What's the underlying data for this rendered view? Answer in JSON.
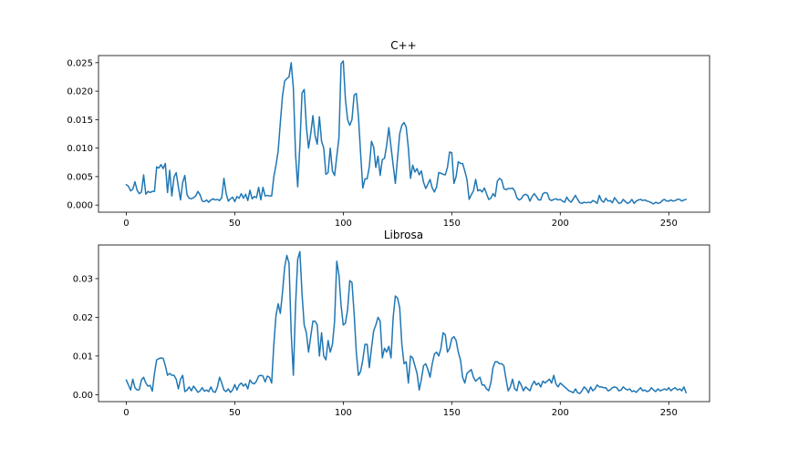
{
  "colors": {
    "series": "#1f77b4",
    "axes": "#000000",
    "background": "#ffffff"
  },
  "chart_data": [
    {
      "type": "line",
      "title": "C++",
      "xlabel": "",
      "ylabel": "",
      "xlim": [
        -12.8,
        268.8
      ],
      "ylim": [
        -0.00125,
        0.02625
      ],
      "xticks": [
        0,
        50,
        100,
        150,
        200,
        250
      ],
      "xtick_labels": [
        "0",
        "50",
        "100",
        "150",
        "200",
        "250"
      ],
      "yticks": [
        0.0,
        0.005,
        0.01,
        0.015,
        0.02,
        0.025
      ],
      "ytick_labels": [
        "0.000",
        "0.005",
        "0.010",
        "0.015",
        "0.020",
        "0.025"
      ],
      "grid": false,
      "series": [
        {
          "x_start": 0,
          "x_step": 1,
          "values": [
            0.0036,
            0.0033,
            0.0025,
            0.0028,
            0.0041,
            0.0026,
            0.002,
            0.0023,
            0.0053,
            0.0019,
            0.0024,
            0.0022,
            0.0024,
            0.0024,
            0.0067,
            0.0065,
            0.0071,
            0.0064,
            0.0073,
            0.0022,
            0.0061,
            0.0016,
            0.0049,
            0.0057,
            0.0032,
            0.0009,
            0.004,
            0.0052,
            0.0018,
            0.0012,
            0.0011,
            0.0013,
            0.0016,
            0.0024,
            0.0018,
            0.0007,
            0.0006,
            0.0009,
            0.0005,
            0.0009,
            0.0011,
            0.0009,
            0.001,
            0.0008,
            0.0013,
            0.0047,
            0.0021,
            0.0007,
            0.0011,
            0.0014,
            0.0006,
            0.0015,
            0.0012,
            0.002,
            0.0012,
            0.0019,
            0.0008,
            0.0026,
            0.0011,
            0.0015,
            0.0013,
            0.0031,
            0.0009,
            0.0031,
            0.0016,
            0.0017,
            0.0016,
            0.0016,
            0.005,
            0.007,
            0.0095,
            0.0145,
            0.0192,
            0.0218,
            0.0222,
            0.0225,
            0.025,
            0.0205,
            0.009,
            0.0032,
            0.0105,
            0.0197,
            0.0203,
            0.0138,
            0.01,
            0.0125,
            0.0157,
            0.0122,
            0.0107,
            0.0155,
            0.0112,
            0.01,
            0.0054,
            0.0057,
            0.01,
            0.006,
            0.0052,
            0.0085,
            0.0118,
            0.0248,
            0.0253,
            0.0185,
            0.015,
            0.014,
            0.015,
            0.0193,
            0.0196,
            0.0155,
            0.009,
            0.003,
            0.0046,
            0.0046,
            0.0067,
            0.0112,
            0.0102,
            0.0066,
            0.0086,
            0.0052,
            0.008,
            0.0082,
            0.0105,
            0.0136,
            0.0102,
            0.007,
            0.0038,
            0.0082,
            0.0125,
            0.014,
            0.0145,
            0.0137,
            0.01,
            0.0047,
            0.007,
            0.0058,
            0.0064,
            0.0053,
            0.006,
            0.004,
            0.0029,
            0.0037,
            0.0045,
            0.003,
            0.0023,
            0.0032,
            0.0057,
            0.0056,
            0.0054,
            0.0053,
            0.0066,
            0.0093,
            0.0092,
            0.0038,
            0.005,
            0.0076,
            0.0073,
            0.0073,
            0.006,
            0.0045,
            0.001,
            0.0018,
            0.0025,
            0.0045,
            0.0025,
            0.0027,
            0.0023,
            0.003,
            0.002,
            0.001,
            0.0012,
            0.002,
            0.0015,
            0.0042,
            0.0047,
            0.0044,
            0.0029,
            0.0027,
            0.0029,
            0.0029,
            0.003,
            0.0025,
            0.0013,
            0.0009,
            0.0011,
            0.0017,
            0.0019,
            0.0017,
            0.0007,
            0.0015,
            0.002,
            0.0015,
            0.0009,
            0.0009,
            0.002,
            0.0022,
            0.0021,
            0.001,
            0.0008,
            0.001,
            0.0011,
            0.0009,
            0.001,
            0.0007,
            0.0005,
            0.0014,
            0.0008,
            0.0005,
            0.0011,
            0.0017,
            0.001,
            0.0004,
            0.0003,
            0.0005,
            0.0004,
            0.0005,
            0.0004,
            0.0008,
            0.0006,
            0.0003,
            0.0017,
            0.0008,
            0.0005,
            0.0012,
            0.0007,
            0.0008,
            0.0004,
            0.0013,
            0.0008,
            0.0003,
            0.0004,
            0.001,
            0.0006,
            0.0003,
            0.0005,
            0.001,
            0.0003,
            0.0007,
            0.0009,
            0.001,
            0.0008,
            0.0009,
            0.0007,
            0.0006,
            0.0004,
            0.0002,
            0.0005,
            0.0003,
            0.0004,
            0.0008,
            0.001,
            0.0007,
            0.0007,
            0.0009,
            0.0007,
            0.0008,
            0.001,
            0.001,
            0.0007,
            0.0009,
            0.001
          ]
        }
      ]
    },
    {
      "type": "line",
      "title": "Librosa",
      "xlabel": "",
      "ylabel": "",
      "xlim": [
        -12.8,
        268.8
      ],
      "ylim": [
        -0.0018,
        0.0387
      ],
      "xticks": [
        0,
        50,
        100,
        150,
        200,
        250
      ],
      "xtick_labels": [
        "0",
        "50",
        "100",
        "150",
        "200",
        "250"
      ],
      "yticks": [
        0.0,
        0.01,
        0.02,
        0.03
      ],
      "ytick_labels": [
        "0.00",
        "0.01",
        "0.02",
        "0.03"
      ],
      "grid": false,
      "series": [
        {
          "x_start": 0,
          "x_step": 1,
          "values": [
            0.0038,
            0.0025,
            0.0012,
            0.004,
            0.0018,
            0.0012,
            0.0013,
            0.0038,
            0.0045,
            0.003,
            0.0022,
            0.0024,
            0.0009,
            0.0055,
            0.009,
            0.0093,
            0.0095,
            0.0094,
            0.0075,
            0.005,
            0.0055,
            0.005,
            0.005,
            0.004,
            0.0015,
            0.004,
            0.005,
            0.0008,
            0.0012,
            0.002,
            0.001,
            0.0022,
            0.0015,
            0.0006,
            0.001,
            0.0018,
            0.0009,
            0.0012,
            0.0008,
            0.002,
            0.0008,
            0.0006,
            0.002,
            0.0045,
            0.003,
            0.0012,
            0.0008,
            0.0015,
            0.0006,
            0.0012,
            0.0026,
            0.0012,
            0.0025,
            0.003,
            0.0022,
            0.0028,
            0.0015,
            0.0038,
            0.003,
            0.0028,
            0.0035,
            0.0048,
            0.005,
            0.0048,
            0.0033,
            0.0048,
            0.0045,
            0.003,
            0.013,
            0.0205,
            0.0235,
            0.021,
            0.0265,
            0.033,
            0.036,
            0.034,
            0.016,
            0.005,
            0.023,
            0.035,
            0.037,
            0.026,
            0.018,
            0.016,
            0.011,
            0.015,
            0.019,
            0.019,
            0.018,
            0.01,
            0.016,
            0.01,
            0.009,
            0.014,
            0.011,
            0.013,
            0.019,
            0.0345,
            0.031,
            0.023,
            0.018,
            0.0185,
            0.022,
            0.0295,
            0.029,
            0.021,
            0.011,
            0.005,
            0.006,
            0.009,
            0.013,
            0.013,
            0.007,
            0.012,
            0.0165,
            0.018,
            0.02,
            0.019,
            0.0095,
            0.012,
            0.011,
            0.0125,
            0.0095,
            0.02,
            0.0255,
            0.025,
            0.0225,
            0.013,
            0.008,
            0.0085,
            0.003,
            0.01,
            0.0095,
            0.0075,
            0.0055,
            0.0012,
            0.004,
            0.0075,
            0.008,
            0.0065,
            0.0045,
            0.008,
            0.0105,
            0.011,
            0.01,
            0.012,
            0.016,
            0.0155,
            0.011,
            0.012,
            0.0145,
            0.015,
            0.014,
            0.011,
            0.009,
            0.0045,
            0.003,
            0.0055,
            0.006,
            0.0065,
            0.0045,
            0.0035,
            0.004,
            0.0045,
            0.0025,
            0.0025,
            0.0015,
            0.001,
            0.003,
            0.007,
            0.0085,
            0.0085,
            0.008,
            0.008,
            0.0075,
            0.004,
            0.001,
            0.002,
            0.004,
            0.0015,
            0.001,
            0.0035,
            0.0025,
            0.001,
            0.002,
            0.0015,
            0.001,
            0.0025,
            0.0035,
            0.0025,
            0.003,
            0.002,
            0.0035,
            0.003,
            0.0035,
            0.004,
            0.003,
            0.005,
            0.0028,
            0.002,
            0.003,
            0.0025,
            0.002,
            0.0015,
            0.001,
            0.0008,
            0.0005,
            0.0015,
            0.0005,
            0.0003,
            0.001,
            0.002,
            0.0015,
            0.0005,
            0.002,
            0.001,
            0.0015,
            0.0025,
            0.002,
            0.002,
            0.0018,
            0.0018,
            0.001,
            0.0012,
            0.0018,
            0.002,
            0.0018,
            0.001,
            0.0012,
            0.002,
            0.0015,
            0.0012,
            0.0015,
            0.0008,
            0.001,
            0.0006,
            0.0012,
            0.0018,
            0.001,
            0.0012,
            0.0008,
            0.001,
            0.0018,
            0.0012,
            0.0008,
            0.0015,
            0.001,
            0.0012,
            0.0015,
            0.0012,
            0.0018,
            0.001,
            0.0015,
            0.0018,
            0.0012,
            0.0015,
            0.001,
            0.002,
            0.0005
          ]
        }
      ]
    }
  ]
}
